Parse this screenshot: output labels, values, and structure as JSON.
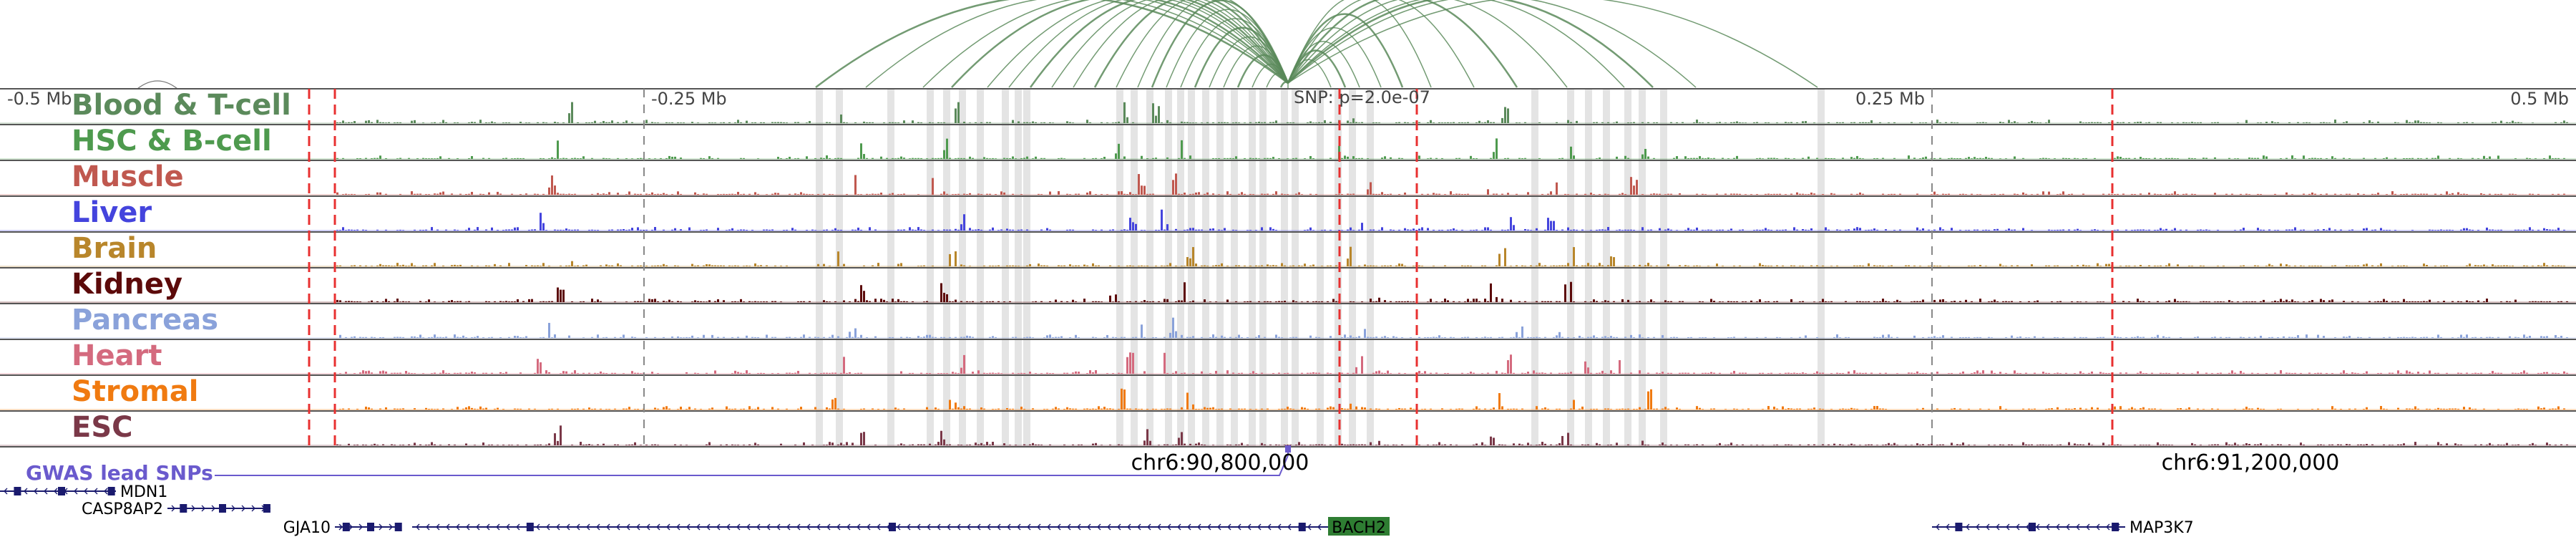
{
  "region": {
    "start": 90400000,
    "end": 91400000,
    "focus": 90900000
  },
  "axis": {
    "ticks": [
      {
        "label": "-0.5 Mb",
        "pos": 90400000,
        "anchor": "start"
      },
      {
        "label": "-0.25 Mb",
        "pos": 90650000,
        "anchor": "start"
      },
      {
        "label": "0.25 Mb",
        "pos": 91150000,
        "anchor": "end"
      },
      {
        "label": "0.5 Mb",
        "pos": 91400000,
        "anchor": "end"
      }
    ],
    "snp_label": "SNP: p=2.0e-07"
  },
  "tracks": [
    {
      "label": "Blood & T-cell",
      "color": "#5b8a5b"
    },
    {
      "label": "HSC & B-cell",
      "color": "#4e9a4e"
    },
    {
      "label": "Muscle",
      "color": "#c0584f"
    },
    {
      "label": "Liver",
      "color": "#4444dd"
    },
    {
      "label": "Brain",
      "color": "#b8862b"
    },
    {
      "label": "Kidney",
      "color": "#5c0a0a"
    },
    {
      "label": "Pancreas",
      "color": "#8aa2da"
    },
    {
      "label": "Heart",
      "color": "#d46a7e"
    },
    {
      "label": "Stromal",
      "color": "#f07a10"
    },
    {
      "label": "ESC",
      "color": "#7a3848"
    }
  ],
  "red_lines": [
    90520000,
    90530000,
    90920000,
    90950000,
    91220000
  ],
  "gwas": {
    "label": "GWAS lead SNPs",
    "color": "#6a5acd"
  },
  "coordinates": [
    {
      "label": "chr6:90,800,000",
      "pos": 90800000
    },
    {
      "label": "chr6:91,200,000",
      "pos": 91200000
    }
  ],
  "genes": [
    {
      "name": "MDN1",
      "start": 90400000,
      "end": 90445000,
      "strand": "-",
      "row": 0,
      "label_side": "right"
    },
    {
      "name": "CASP8AP2",
      "start": 90465000,
      "end": 90505000,
      "strand": "+",
      "row": 1,
      "label_side": "left"
    },
    {
      "name": "GJA10",
      "start": 90530000,
      "end": 90555000,
      "strand": "+",
      "row": 2,
      "label_side": "left"
    },
    {
      "name": "BACH2",
      "start": 90560000,
      "end": 90930000,
      "strand": "-",
      "row": 2,
      "label_side": "right"
    },
    {
      "name": "MAP3K7",
      "start": 91150000,
      "end": 91225000,
      "strand": "-",
      "row": 2,
      "label_side": "right"
    }
  ],
  "highlight_label_color": "#2e7d32",
  "arc_color": "#5b8a5b"
}
